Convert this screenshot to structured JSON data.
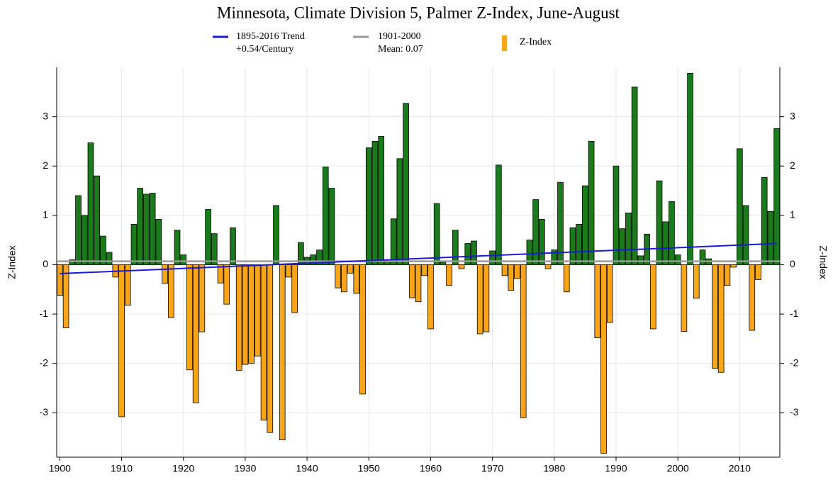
{
  "chart_data": {
    "type": "bar",
    "title": "Minnesota, Climate Division 5, Palmer Z-Index, June-August",
    "y_label": "Z-Index",
    "y2_label": "Z-Index",
    "x": [
      1900,
      1901,
      1902,
      1903,
      1904,
      1905,
      1906,
      1907,
      1908,
      1909,
      1910,
      1911,
      1912,
      1913,
      1914,
      1915,
      1916,
      1917,
      1918,
      1919,
      1920,
      1921,
      1922,
      1923,
      1924,
      1925,
      1926,
      1927,
      1928,
      1929,
      1930,
      1931,
      1932,
      1933,
      1934,
      1935,
      1936,
      1937,
      1938,
      1939,
      1940,
      1941,
      1942,
      1943,
      1944,
      1945,
      1946,
      1947,
      1948,
      1949,
      1950,
      1951,
      1952,
      1953,
      1954,
      1955,
      1956,
      1957,
      1958,
      1959,
      1960,
      1961,
      1962,
      1963,
      1964,
      1965,
      1966,
      1967,
      1968,
      1969,
      1970,
      1971,
      1972,
      1973,
      1974,
      1975,
      1976,
      1977,
      1978,
      1979,
      1980,
      1981,
      1982,
      1983,
      1984,
      1985,
      1986,
      1987,
      1988,
      1989,
      1990,
      1991,
      1992,
      1993,
      1994,
      1995,
      1996,
      1997,
      1998,
      1999,
      2000,
      2001,
      2002,
      2003,
      2004,
      2005,
      2006,
      2007,
      2008,
      2009,
      2010,
      2011,
      2012,
      2013,
      2014,
      2015,
      2016
    ],
    "series": [
      {
        "name": "Z-Index",
        "color": "#f9a51a",
        "positive_color": "#1b7a1b",
        "values": [
          -0.62,
          -1.28,
          0.1,
          1.4,
          1.0,
          2.47,
          1.8,
          0.58,
          0.25,
          -0.25,
          -3.08,
          -0.82,
          0.82,
          1.55,
          1.43,
          1.45,
          0.92,
          -0.38,
          -1.07,
          0.7,
          0.2,
          -2.13,
          -2.8,
          -1.36,
          1.12,
          0.63,
          -0.37,
          -0.8,
          0.75,
          -2.14,
          -2.02,
          -2.0,
          -1.85,
          -3.15,
          -3.4,
          1.2,
          -3.55,
          -0.25,
          -0.97,
          0.45,
          0.15,
          0.2,
          0.3,
          1.98,
          1.55,
          -0.47,
          -0.55,
          -0.17,
          -0.58,
          -2.62,
          2.37,
          2.5,
          2.6,
          0.1,
          0.93,
          2.15,
          3.27,
          -0.67,
          -0.75,
          -0.22,
          -1.3,
          1.24,
          0.05,
          -0.42,
          0.7,
          -0.08,
          0.43,
          0.48,
          -1.4,
          -1.36,
          0.28,
          2.02,
          -0.22,
          -0.52,
          -0.28,
          -3.1,
          0.5,
          1.32,
          0.92,
          -0.08,
          0.3,
          1.67,
          -0.55,
          0.75,
          0.82,
          1.6,
          2.5,
          -1.48,
          -3.82,
          -1.17,
          2.0,
          0.73,
          1.05,
          3.6,
          0.18,
          0.62,
          -1.3,
          1.7,
          0.87,
          1.28,
          0.2,
          -1.35,
          3.88,
          -0.68,
          0.3,
          0.12,
          -2.1,
          -2.18,
          -0.42,
          -0.05,
          2.35,
          1.2,
          -1.33,
          -0.3,
          1.77,
          1.08,
          2.76
        ]
      }
    ],
    "trend": {
      "name": [
        "1895-2016 Trend",
        "+0.54/Century"
      ],
      "color": "#1a1ad6",
      "x": [
        1900,
        2016
      ],
      "values": [
        -0.18,
        0.43
      ]
    },
    "mean": {
      "name": [
        "1901-2000",
        "Mean: 0.07"
      ],
      "color": "#999999",
      "value": 0.07
    },
    "xlim": [
      1899.5,
      2016.5
    ],
    "xticks": [
      1900,
      1910,
      1920,
      1930,
      1940,
      1950,
      1960,
      1970,
      1980,
      1990,
      2000,
      2010
    ],
    "ylim": [
      -3.9,
      4.0
    ],
    "yticks": [
      -3,
      -2,
      -1,
      0,
      1,
      2,
      3
    ],
    "grid": true
  }
}
